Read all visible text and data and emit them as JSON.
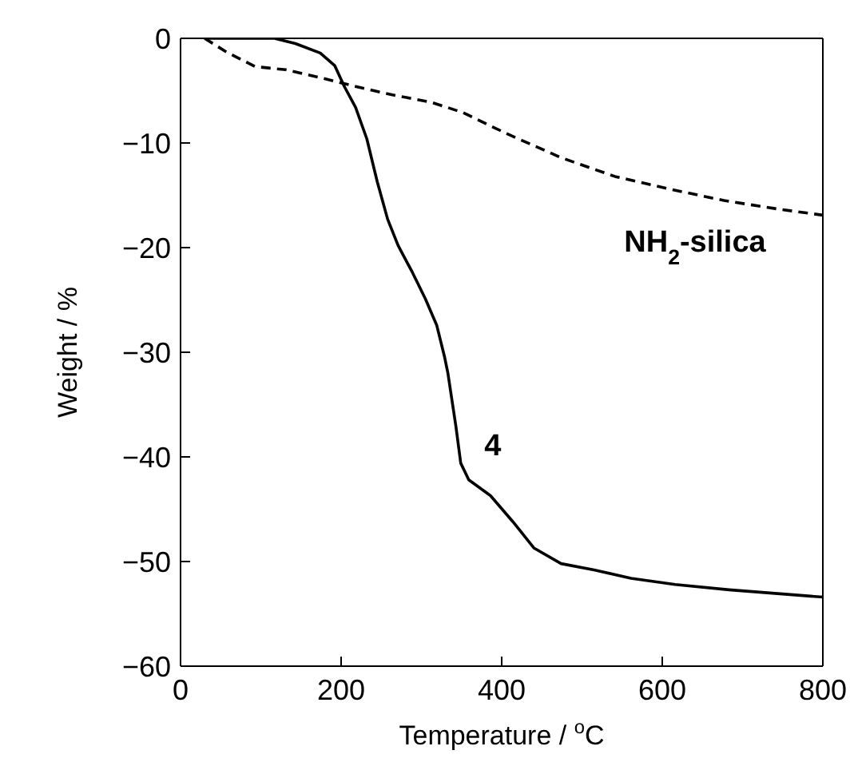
{
  "chart_data": {
    "type": "line",
    "xlabel": "Temperature / $^{o}$C",
    "ylabel": "Weight / %",
    "xlim": [
      0,
      800
    ],
    "xticks": [
      0,
      200,
      400,
      600,
      800
    ],
    "ylim": [
      -60,
      0
    ],
    "yticks": [
      -60,
      -50,
      -40,
      -30,
      -20,
      -10,
      0
    ],
    "marker": "none",
    "series": [
      {
        "name": "4",
        "color": "#000000",
        "line_style": "solid",
        "x": [
          30,
          117,
          143,
          174,
          192,
          204,
          218,
          232,
          245,
          258,
          271,
          289,
          305,
          319,
          329,
          333,
          343,
          349,
          359,
          386,
          414,
          440,
          474,
          515,
          561,
          616,
          683,
          750,
          800
        ],
        "values": [
          0,
          0,
          -0.5,
          -1.4,
          -2.6,
          -4.6,
          -6.6,
          -9.6,
          -13.7,
          -17.3,
          -19.8,
          -22.4,
          -24.9,
          -27.4,
          -30.5,
          -32,
          -37.1,
          -40.6,
          -42.2,
          -43.7,
          -46.2,
          -48.7,
          -50.2,
          -50.8,
          -51.6,
          -52.2,
          -52.7,
          -53.1,
          -53.4
        ]
      },
      {
        "name": "NH$_{2}$-silica",
        "color": "#000000",
        "line_style": "dashed",
        "x": [
          30,
          57,
          93,
          131,
          171,
          218,
          264,
          312,
          352,
          406,
          474,
          541,
          609,
          677,
          743,
          800
        ],
        "values": [
          0,
          -1.3,
          -2.7,
          -3.0,
          -3.7,
          -4.6,
          -5.4,
          -6.1,
          -7.1,
          -9.1,
          -11.4,
          -13.2,
          -14.4,
          -15.5,
          -16.3,
          -16.9
        ]
      }
    ]
  }
}
